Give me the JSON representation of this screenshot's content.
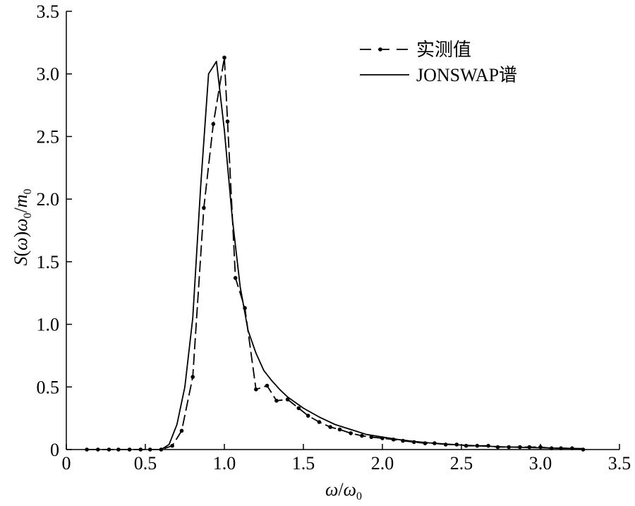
{
  "chart_data": {
    "type": "line",
    "xlabel": "ω/ω0",
    "ylabel": "S(ω)ω0/m0",
    "xlim": [
      0,
      3.5
    ],
    "ylim": [
      0,
      3.5
    ],
    "xticks": [
      "0",
      "0.5",
      "1.0",
      "1.5",
      "2.0",
      "2.5",
      "3.0",
      "3.5"
    ],
    "yticks": [
      "0",
      "0.5",
      "1.0",
      "1.5",
      "2.0",
      "2.5",
      "3.0",
      "3.5"
    ],
    "grid": false,
    "legend_position": "top-right",
    "series": [
      {
        "name": "实测值",
        "style": "dash-dot with point markers",
        "color": "#000000",
        "x": [
          0.13,
          0.2,
          0.27,
          0.33,
          0.4,
          0.47,
          0.53,
          0.6,
          0.67,
          0.73,
          0.8,
          0.87,
          0.93,
          1.0,
          1.02,
          1.07,
          1.13,
          1.2,
          1.27,
          1.33,
          1.4,
          1.47,
          1.53,
          1.6,
          1.67,
          1.73,
          1.8,
          1.87,
          1.93,
          2.0,
          2.07,
          2.13,
          2.2,
          2.27,
          2.33,
          2.4,
          2.47,
          2.53,
          2.6,
          2.67,
          2.73,
          2.8,
          2.87,
          2.93,
          3.0,
          3.07,
          3.13,
          3.2,
          3.27
        ],
        "y": [
          0.0,
          0.0,
          0.0,
          0.0,
          0.0,
          0.0,
          0.0,
          0.0,
          0.03,
          0.15,
          0.58,
          1.93,
          2.6,
          3.13,
          2.62,
          1.37,
          1.13,
          0.48,
          0.51,
          0.39,
          0.4,
          0.33,
          0.27,
          0.22,
          0.18,
          0.16,
          0.13,
          0.11,
          0.1,
          0.09,
          0.08,
          0.07,
          0.06,
          0.05,
          0.05,
          0.04,
          0.04,
          0.03,
          0.03,
          0.03,
          0.02,
          0.02,
          0.02,
          0.02,
          0.02,
          0.01,
          0.01,
          0.01,
          0.0
        ]
      },
      {
        "name": "JONSWAP谱",
        "style": "solid",
        "color": "#000000",
        "x": [
          0.6,
          0.65,
          0.7,
          0.75,
          0.8,
          0.85,
          0.9,
          0.95,
          1.0,
          1.05,
          1.1,
          1.15,
          1.2,
          1.25,
          1.3,
          1.35,
          1.4,
          1.5,
          1.6,
          1.7,
          1.8,
          1.9,
          2.0,
          2.1,
          2.2,
          2.3,
          2.4,
          2.5,
          2.6,
          2.7,
          2.8,
          2.9,
          3.0,
          3.1,
          3.2,
          3.27
        ],
        "y": [
          0.0,
          0.04,
          0.2,
          0.5,
          1.05,
          2.1,
          3.0,
          3.1,
          2.55,
          1.85,
          1.3,
          0.95,
          0.77,
          0.63,
          0.55,
          0.48,
          0.42,
          0.33,
          0.26,
          0.2,
          0.16,
          0.12,
          0.1,
          0.08,
          0.065,
          0.053,
          0.044,
          0.036,
          0.03,
          0.025,
          0.02,
          0.017,
          0.014,
          0.011,
          0.009,
          0.008
        ]
      }
    ]
  }
}
